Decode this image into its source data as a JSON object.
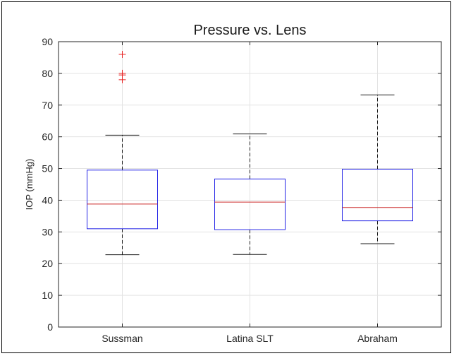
{
  "chart_data": {
    "type": "box",
    "title": "Pressure vs. Lens",
    "xlabel": "",
    "ylabel": "IOP (mmHg)",
    "ylim": [
      0,
      90
    ],
    "yticks": [
      0,
      10,
      20,
      30,
      40,
      50,
      60,
      70,
      80,
      90
    ],
    "grid": true,
    "categories": [
      "Sussman",
      "Latina SLT",
      "Abraham"
    ],
    "boxes": [
      {
        "category": "Sussman",
        "whisker_low": 22.8,
        "q1": 31.0,
        "median": 38.8,
        "q3": 49.5,
        "whisker_high": 60.5,
        "outliers": [
          78.0,
          79.5,
          80.0,
          86.0
        ]
      },
      {
        "category": "Latina SLT",
        "whisker_low": 22.9,
        "q1": 30.7,
        "median": 39.4,
        "q3": 46.7,
        "whisker_high": 60.9,
        "outliers": []
      },
      {
        "category": "Abraham",
        "whisker_low": 26.3,
        "q1": 33.5,
        "median": 37.7,
        "q3": 49.8,
        "whisker_high": 73.2,
        "outliers": []
      }
    ],
    "colors": {
      "box": "#2323e6",
      "median": "#cc2a2a",
      "whisker": "#1a1a1a",
      "outlier": "#e62020",
      "grid": "#e3e3e3",
      "axis": "#262626"
    }
  }
}
